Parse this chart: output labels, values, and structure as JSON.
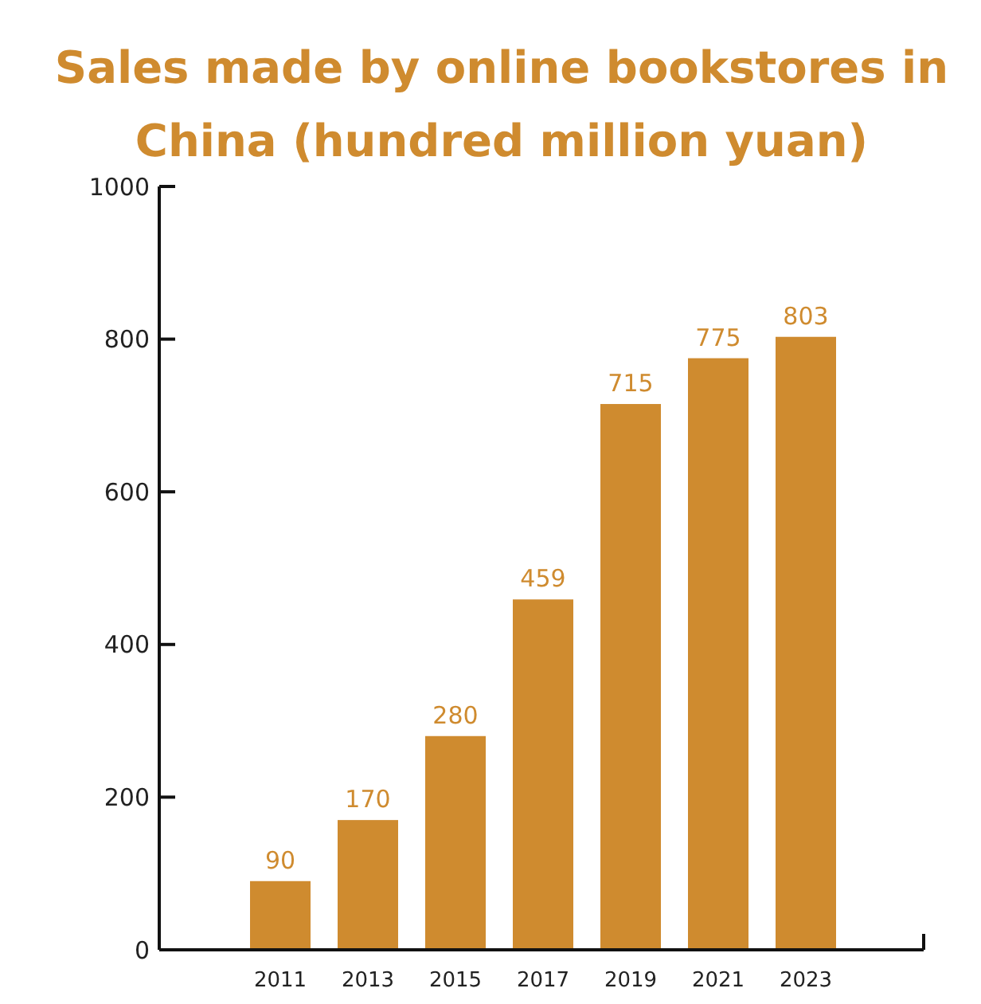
{
  "chart_data": {
    "type": "bar",
    "title": "Sales made by online bookstores in China (hundred million yuan)",
    "categories": [
      "2011",
      "2013",
      "2015",
      "2017",
      "2019",
      "2021",
      "2023"
    ],
    "values": [
      90,
      170,
      280,
      459,
      715,
      775,
      803
    ],
    "color": "#cf8b2f",
    "ylim": [
      0,
      1000
    ],
    "yticks": [
      0,
      200,
      400,
      600,
      800,
      1000
    ],
    "data_labels": true,
    "grid": false
  }
}
